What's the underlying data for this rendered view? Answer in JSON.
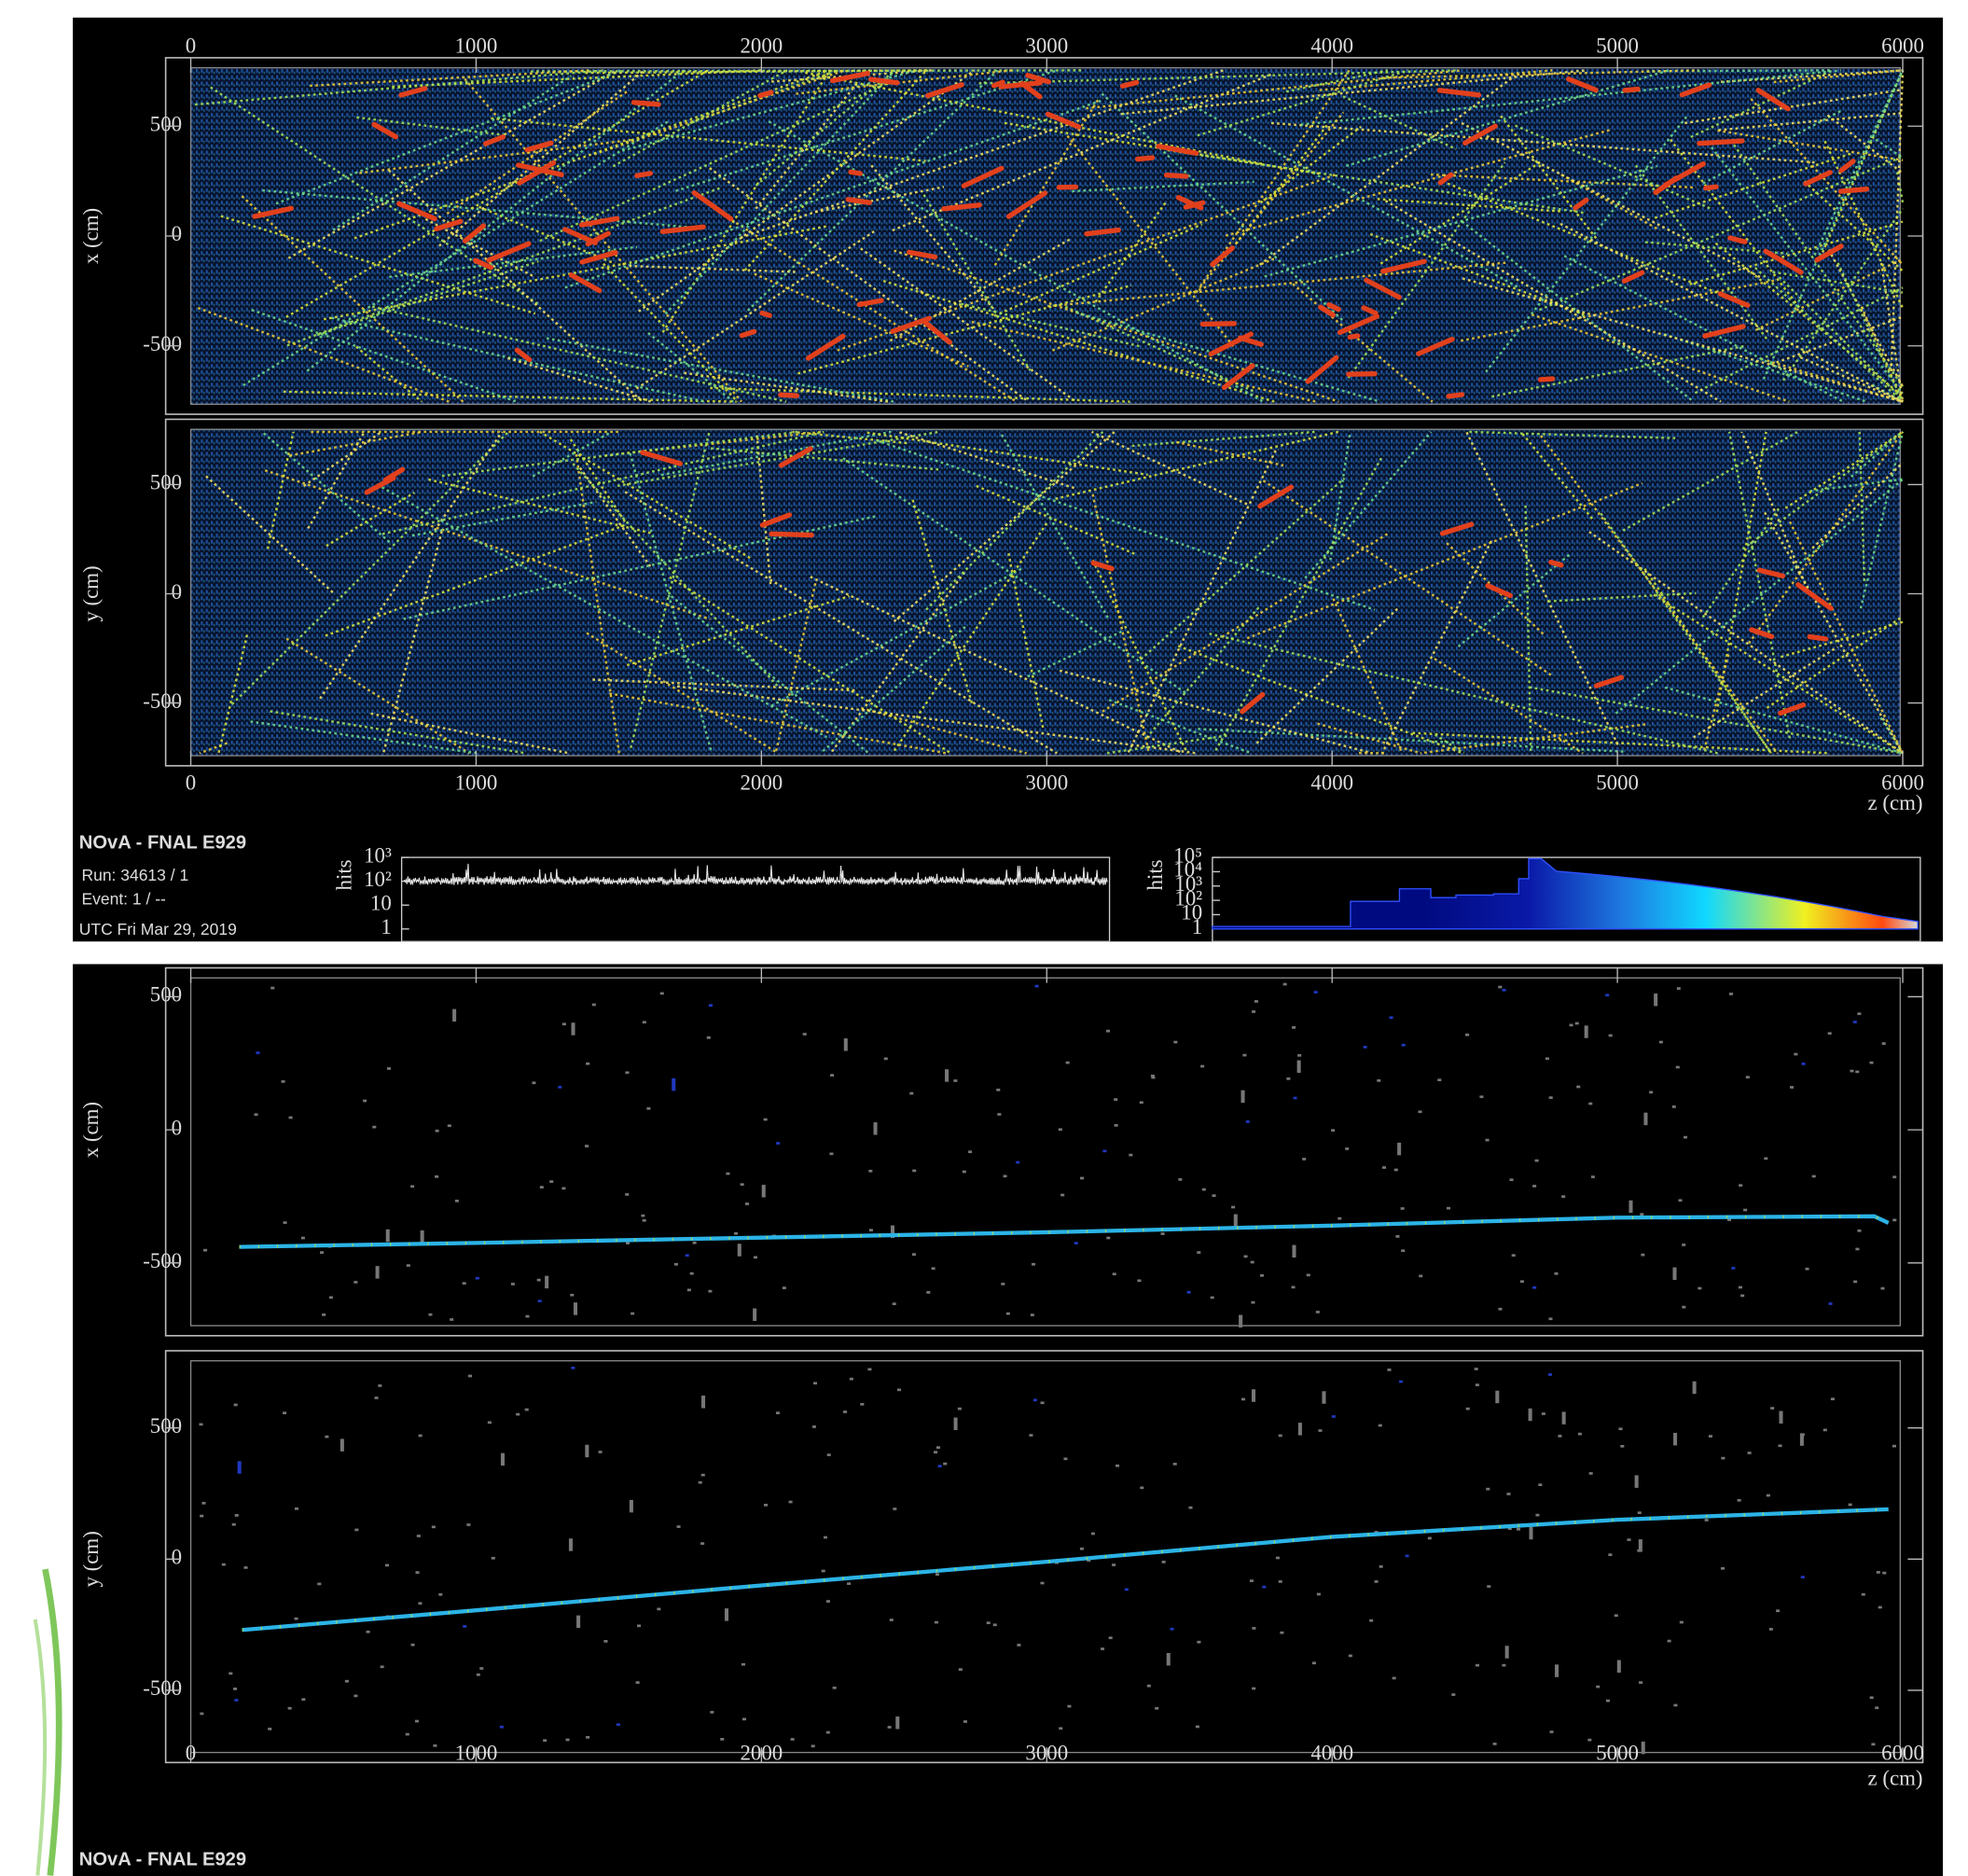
{
  "displays": [
    {
      "views": [
        {
          "axis_label": "x (cm)",
          "yticks": [
            -500,
            0,
            500
          ]
        },
        {
          "axis_label": "y (cm)",
          "yticks": [
            -500,
            0,
            500
          ]
        }
      ],
      "z_axis": {
        "label": "z (cm)",
        "ticks": [
          0,
          1000,
          2000,
          3000,
          4000,
          5000,
          6000
        ]
      },
      "info": {
        "title": "NOvA - FNAL E929",
        "run": "Run:  34613 / 1",
        "event": "Event: 1 / --",
        "utc": "UTC Fri Mar 29, 2019"
      },
      "time_histogram": {
        "axis_label": "hits",
        "yticks": [
          1,
          10,
          {
            "value": 100,
            "label": "10²"
          },
          {
            "value": 1000,
            "label": "10³"
          }
        ]
      },
      "charge_histogram": {
        "axis_label": "hits",
        "yticks": [
          1,
          10,
          {
            "value": 100,
            "label": "10²"
          },
          {
            "value": 1000,
            "label": "10³"
          },
          {
            "value": 10000,
            "label": "10⁴"
          },
          {
            "value": 100000,
            "label": "10⁵"
          }
        ]
      }
    },
    {
      "views": [
        {
          "axis_label": "x (cm)",
          "yticks": [
            -500,
            0,
            500
          ],
          "track": {
            "z": [
              170,
              1000,
              2000,
              3000,
              4000,
              5000,
              5900,
              5950
            ],
            "values": [
              -440,
              -425,
              -405,
              -385,
              -360,
              -330,
              -325,
              -350
            ]
          }
        },
        {
          "axis_label": "y (cm)",
          "yticks": [
            -500,
            0,
            500
          ],
          "track": {
            "z": [
              180,
              1000,
              2000,
              3000,
              4000,
              5000,
              5950
            ],
            "values": [
              -270,
              -195,
              -100,
              -10,
              85,
              150,
              190
            ]
          }
        }
      ],
      "z_axis": {
        "label": "z (cm)",
        "ticks": [
          0,
          1000,
          2000,
          3000,
          4000,
          5000,
          6000
        ]
      },
      "info": {
        "title": "NOvA - FNAL E929"
      }
    }
  ]
}
